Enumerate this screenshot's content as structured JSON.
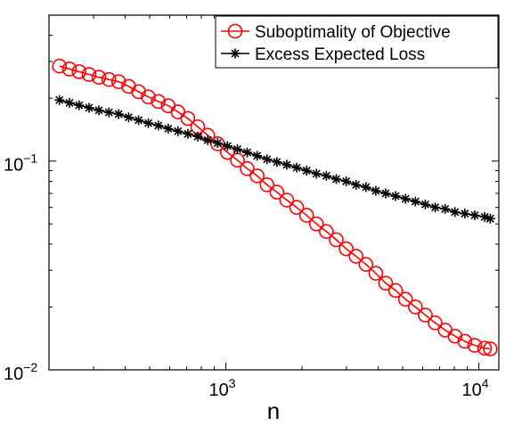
{
  "chart_data": {
    "type": "line",
    "xlabel": "n",
    "ylabel": "",
    "xscale": "log",
    "yscale": "log",
    "xlim": [
      200,
      12000
    ],
    "ylim": [
      0.01,
      0.5
    ],
    "grid": false,
    "legend_position": "top-right",
    "x_ticks": [
      {
        "value": 1000,
        "base": "10",
        "exp": "3"
      },
      {
        "value": 10000,
        "base": "10",
        "exp": "4"
      }
    ],
    "y_ticks": [
      {
        "value": 0.01,
        "base": "10",
        "exp": "−2"
      },
      {
        "value": 0.1,
        "base": "10",
        "exp": "−1"
      }
    ],
    "series": [
      {
        "name": "Suboptimality of Objective",
        "color": "#ff0000",
        "marker": "circle",
        "x": [
          220,
          241,
          263,
          288,
          315,
          345,
          377,
          413,
          452,
          494,
          541,
          592,
          647,
          708,
          775,
          848,
          928,
          1015,
          1111,
          1215,
          1330,
          1455,
          1592,
          1742,
          1906,
          2086,
          2282,
          2497,
          2732,
          2990,
          3271,
          3580,
          3917,
          4286,
          4690,
          5131,
          5615,
          6144,
          6723,
          7356,
          8049,
          8807,
          9637,
          10545,
          11100
        ],
        "y": [
          0.285,
          0.276,
          0.268,
          0.26,
          0.252,
          0.246,
          0.24,
          0.228,
          0.215,
          0.203,
          0.193,
          0.184,
          0.172,
          0.16,
          0.146,
          0.133,
          0.121,
          0.11,
          0.101,
          0.092,
          0.085,
          0.077,
          0.071,
          0.065,
          0.06,
          0.055,
          0.05,
          0.046,
          0.042,
          0.038,
          0.035,
          0.032,
          0.029,
          0.026,
          0.024,
          0.0218,
          0.02,
          0.0183,
          0.0168,
          0.0155,
          0.0145,
          0.0137,
          0.0131,
          0.0127,
          0.0126
        ]
      },
      {
        "name": "Excess Expected Loss",
        "color": "#000000",
        "marker": "asterisk",
        "x": [
          220,
          241,
          263,
          288,
          315,
          345,
          377,
          413,
          452,
          494,
          541,
          592,
          647,
          708,
          775,
          848,
          928,
          1015,
          1111,
          1215,
          1330,
          1455,
          1592,
          1742,
          1906,
          2086,
          2282,
          2497,
          2732,
          2990,
          3271,
          3580,
          3917,
          4286,
          4690,
          5131,
          5615,
          6144,
          6723,
          7356,
          8049,
          8807,
          9637,
          10545,
          11100
        ],
        "y": [
          0.196,
          0.19,
          0.185,
          0.18,
          0.175,
          0.171,
          0.168,
          0.162,
          0.157,
          0.152,
          0.148,
          0.143,
          0.139,
          0.135,
          0.131,
          0.126,
          0.122,
          0.118,
          0.114,
          0.11,
          0.106,
          0.102,
          0.099,
          0.096,
          0.093,
          0.09,
          0.087,
          0.085,
          0.082,
          0.08,
          0.077,
          0.075,
          0.072,
          0.07,
          0.068,
          0.066,
          0.064,
          0.062,
          0.06,
          0.059,
          0.057,
          0.056,
          0.055,
          0.054,
          0.053
        ]
      }
    ]
  }
}
